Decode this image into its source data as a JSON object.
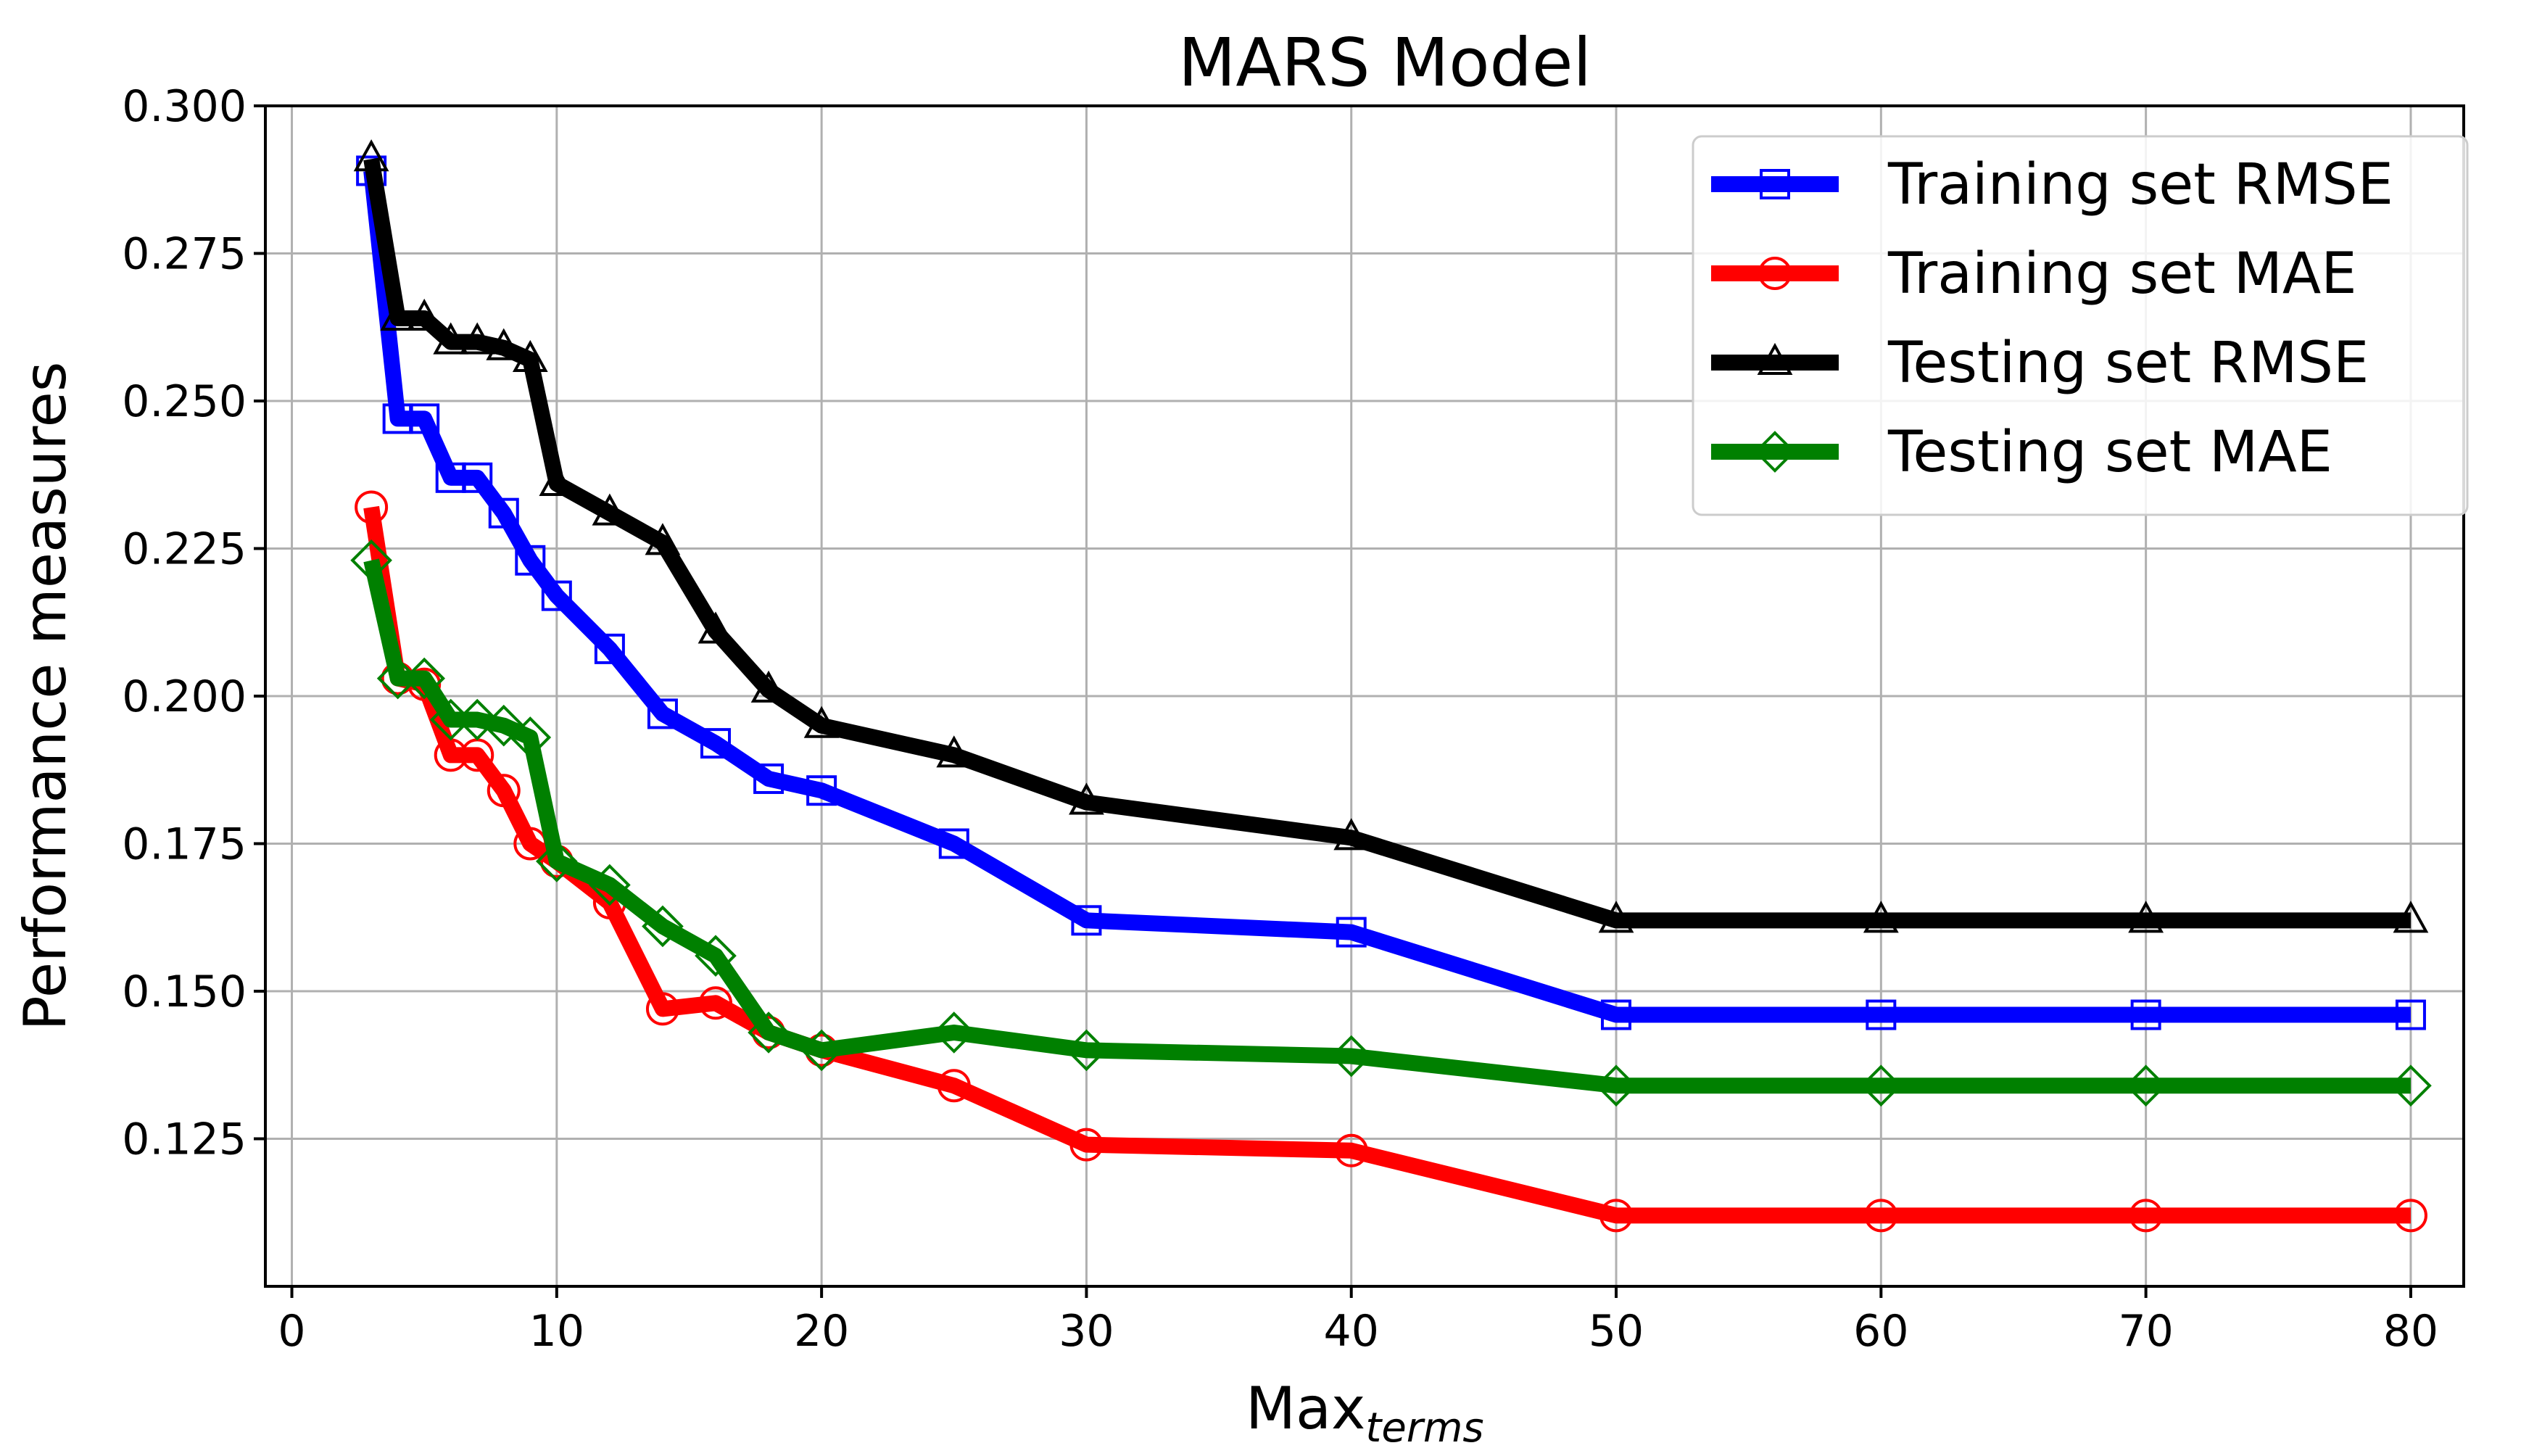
{
  "chart_data": {
    "type": "line",
    "title": "MARS Model",
    "xlabel": "Max",
    "xlabel_subscript": "terms",
    "ylabel": "Performance measures",
    "xlim": [
      -1,
      82
    ],
    "ylim": [
      0.1,
      0.3
    ],
    "xticks": [
      0,
      10,
      20,
      30,
      40,
      50,
      60,
      70,
      80
    ],
    "yticks": [
      0.125,
      0.15,
      0.175,
      0.2,
      0.225,
      0.25,
      0.275,
      0.3
    ],
    "ytick_labels": [
      "0.125",
      "0.150",
      "0.175",
      "0.200",
      "0.225",
      "0.250",
      "0.275",
      "0.300"
    ],
    "xtick_labels": [
      "0",
      "10",
      "20",
      "30",
      "40",
      "50",
      "60",
      "70",
      "80"
    ],
    "grid": true,
    "legend_position": "top-right",
    "x": [
      3,
      4,
      5,
      6,
      7,
      8,
      9,
      10,
      12,
      14,
      16,
      18,
      20,
      25,
      30,
      40,
      50,
      60,
      70,
      80
    ],
    "series": [
      {
        "name": "Training set RMSE",
        "color": "#0000ff",
        "marker": "square",
        "values": [
          0.289,
          0.247,
          0.247,
          0.237,
          0.237,
          0.231,
          0.223,
          0.217,
          0.208,
          0.197,
          0.192,
          0.186,
          0.184,
          0.175,
          0.162,
          0.16,
          0.146,
          0.146,
          0.146,
          0.146
        ]
      },
      {
        "name": "Training set MAE",
        "color": "#ff0000",
        "marker": "circle",
        "values": [
          0.232,
          0.203,
          0.202,
          0.19,
          0.19,
          0.184,
          0.175,
          0.172,
          0.165,
          0.147,
          0.148,
          0.143,
          0.14,
          0.134,
          0.124,
          0.123,
          0.112,
          0.112,
          0.112,
          0.112
        ]
      },
      {
        "name": "Testing set RMSE",
        "color": "#000000",
        "marker": "triangle",
        "values": [
          0.291,
          0.264,
          0.264,
          0.26,
          0.26,
          0.259,
          0.257,
          0.236,
          0.231,
          0.226,
          0.211,
          0.201,
          0.195,
          0.19,
          0.182,
          0.176,
          0.162,
          0.162,
          0.162,
          0.162
        ]
      },
      {
        "name": "Testing set MAE",
        "color": "#008000",
        "marker": "diamond",
        "values": [
          0.223,
          0.203,
          0.203,
          0.196,
          0.196,
          0.195,
          0.193,
          0.172,
          0.168,
          0.161,
          0.156,
          0.143,
          0.14,
          0.143,
          0.14,
          0.139,
          0.134,
          0.134,
          0.134,
          0.134
        ]
      }
    ]
  }
}
